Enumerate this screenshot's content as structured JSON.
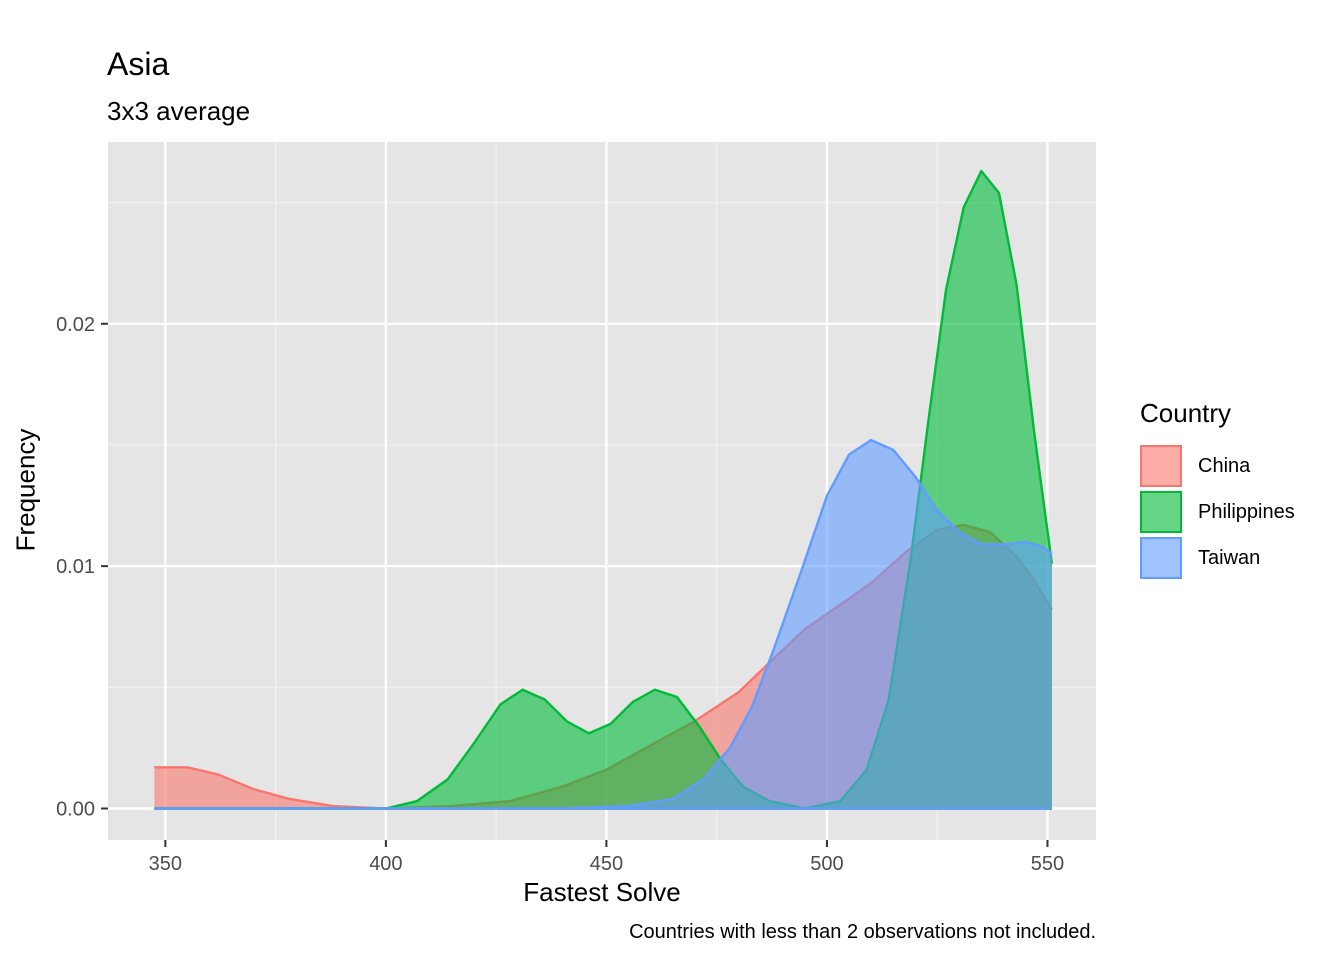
{
  "chart_data": {
    "type": "area",
    "title": "Asia",
    "subtitle": "3x3 average",
    "xlabel": "Fastest Solve",
    "ylabel": "Frequency",
    "caption": "Countries with less than 2 observations not included.",
    "xlim": [
      337,
      561
    ],
    "ylim": [
      -0.0013,
      0.0275
    ],
    "x_ticks": [
      350,
      400,
      450,
      500,
      550
    ],
    "y_ticks": [
      0.0,
      0.01,
      0.02
    ],
    "y_tick_labels": [
      "0.00",
      "0.01",
      "0.02"
    ],
    "grid": true,
    "legend": {
      "title": "Country",
      "position": "right"
    },
    "series": [
      {
        "name": "China",
        "color": "#F8766D",
        "points": [
          [
            347.5,
            0.0017
          ],
          [
            355,
            0.0017
          ],
          [
            362,
            0.0014
          ],
          [
            370,
            0.0008
          ],
          [
            378,
            0.0004
          ],
          [
            388,
            0.0001
          ],
          [
            400,
            0.0
          ],
          [
            415,
            0.0001
          ],
          [
            428,
            0.0003
          ],
          [
            440,
            0.0009
          ],
          [
            450,
            0.0016
          ],
          [
            460,
            0.0026
          ],
          [
            470,
            0.0036
          ],
          [
            480,
            0.0048
          ],
          [
            488,
            0.0062
          ],
          [
            495,
            0.0074
          ],
          [
            503,
            0.0084
          ],
          [
            510,
            0.0093
          ],
          [
            518,
            0.0106
          ],
          [
            525,
            0.0115
          ],
          [
            531,
            0.0117
          ],
          [
            537,
            0.0114
          ],
          [
            543,
            0.0104
          ],
          [
            547,
            0.0094
          ],
          [
            551,
            0.0082
          ]
        ]
      },
      {
        "name": "Philippines",
        "color": "#00BA38",
        "points": [
          [
            347.5,
            0.0
          ],
          [
            390,
            0.0
          ],
          [
            400,
            0.0
          ],
          [
            407,
            0.0003
          ],
          [
            414,
            0.0012
          ],
          [
            420,
            0.0027
          ],
          [
            426,
            0.0043
          ],
          [
            431,
            0.0049
          ],
          [
            436,
            0.0045
          ],
          [
            441,
            0.0036
          ],
          [
            446,
            0.0031
          ],
          [
            451,
            0.0035
          ],
          [
            456,
            0.0044
          ],
          [
            461,
            0.0049
          ],
          [
            466,
            0.0046
          ],
          [
            471,
            0.0034
          ],
          [
            476,
            0.002
          ],
          [
            481,
            0.0009
          ],
          [
            487,
            0.0003
          ],
          [
            495,
            0.0
          ],
          [
            503,
            0.0003
          ],
          [
            509,
            0.0016
          ],
          [
            514,
            0.0045
          ],
          [
            519,
            0.0103
          ],
          [
            523,
            0.016
          ],
          [
            527,
            0.0214
          ],
          [
            531,
            0.0248
          ],
          [
            535,
            0.0263
          ],
          [
            539,
            0.0254
          ],
          [
            543,
            0.0216
          ],
          [
            547,
            0.0155
          ],
          [
            551,
            0.0101
          ]
        ]
      },
      {
        "name": "Taiwan",
        "color": "#619CFF",
        "points": [
          [
            347.5,
            0.0
          ],
          [
            420,
            0.0
          ],
          [
            440,
            0.0
          ],
          [
            455,
            0.0001
          ],
          [
            465,
            0.0004
          ],
          [
            472,
            0.0012
          ],
          [
            478,
            0.0025
          ],
          [
            483,
            0.0042
          ],
          [
            488,
            0.0066
          ],
          [
            494,
            0.0097
          ],
          [
            500,
            0.0129
          ],
          [
            505,
            0.0146
          ],
          [
            510,
            0.0152
          ],
          [
            515,
            0.0148
          ],
          [
            520,
            0.0137
          ],
          [
            525,
            0.0123
          ],
          [
            530,
            0.0114
          ],
          [
            535,
            0.0109
          ],
          [
            540,
            0.0109
          ],
          [
            545,
            0.011
          ],
          [
            549,
            0.0108
          ],
          [
            551,
            0.0105
          ]
        ]
      }
    ]
  }
}
